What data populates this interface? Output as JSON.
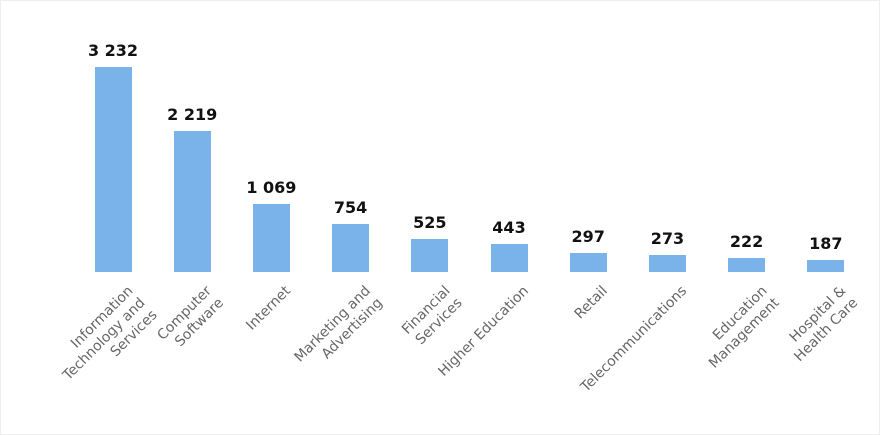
{
  "chart_data": {
    "type": "bar",
    "categories": [
      "Information\nTechnology and\nServices",
      "Computer\nSoftware",
      "Internet",
      "Marketing and\nAdvertising",
      "Financial\nServices",
      "Higher Education",
      "Retail",
      "Telecommunications",
      "Education\nManagement",
      "Hospital &\nHealth Care"
    ],
    "values": [
      3232,
      2219,
      1069,
      754,
      525,
      443,
      297,
      273,
      222,
      187
    ],
    "value_labels": [
      "3 232",
      "2 219",
      "1 069",
      "754",
      "525",
      "443",
      "297",
      "273",
      "222",
      "187"
    ],
    "color": "#7ab3ea"
  }
}
